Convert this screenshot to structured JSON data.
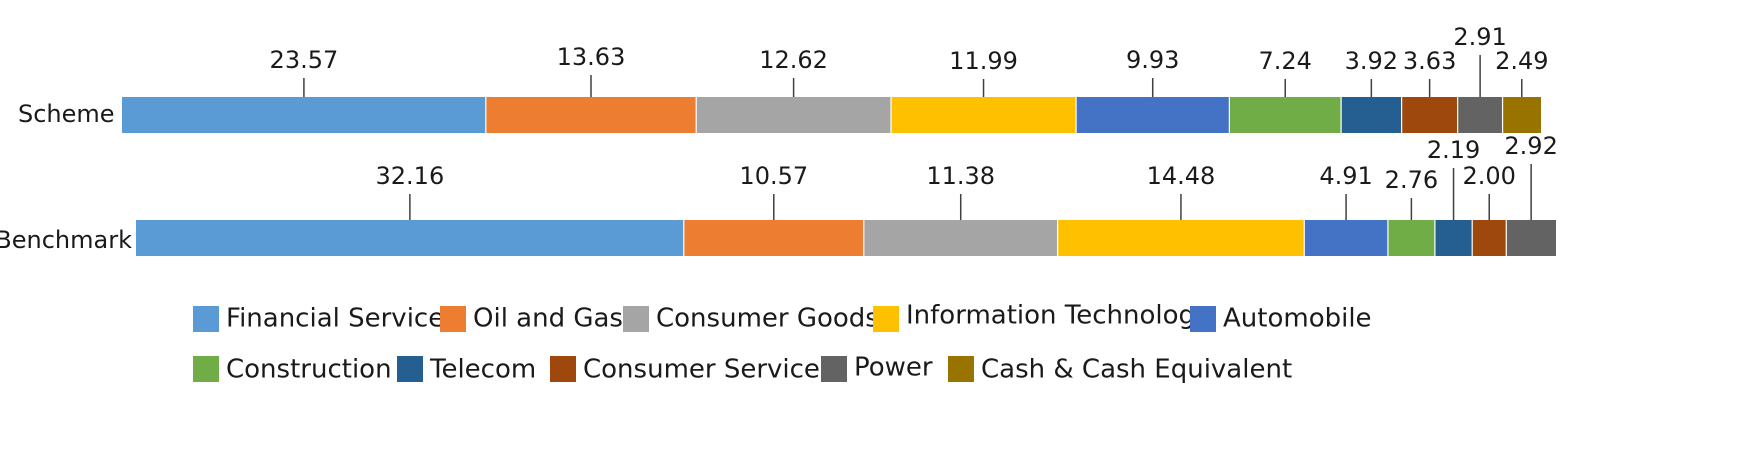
{
  "chart_data": {
    "type": "bar",
    "orientation": "horizontal",
    "stacked": true,
    "categories": [
      "Scheme",
      "Benchmark"
    ],
    "series": [
      {
        "name": "Financial Services",
        "values": [
          23.57,
          32.16
        ]
      },
      {
        "name": "Oil and Gas",
        "values": [
          13.63,
          10.57
        ]
      },
      {
        "name": "Consumer Goods",
        "values": [
          12.62,
          11.38
        ]
      },
      {
        "name": "Information Technology",
        "values": [
          11.99,
          14.48
        ]
      },
      {
        "name": "Automobile",
        "values": [
          9.93,
          4.91
        ]
      },
      {
        "name": "Construction",
        "values": [
          7.24,
          2.76
        ]
      },
      {
        "name": "Telecom",
        "values": [
          3.92,
          2.19
        ]
      },
      {
        "name": "Consumer Services",
        "values": [
          3.63,
          2.0
        ]
      },
      {
        "name": "Power",
        "values": [
          2.91,
          2.92
        ]
      },
      {
        "name": "Cash & Cash Equivalent",
        "values": [
          2.49,
          null
        ]
      }
    ],
    "value_labels": [
      [
        "23.57",
        "13.63",
        "12.62",
        "11.99",
        "9.93",
        "7.24",
        "3.92",
        "3.63",
        "2.91",
        "2.49"
      ],
      [
        "32.16",
        "10.57",
        "11.38",
        "14.48",
        "4.91",
        "2.76",
        "2.19",
        "2.00",
        "2.92",
        ""
      ]
    ],
    "colors": [
      "#5B9BD5",
      "#ED7D31",
      "#A5A5A5",
      "#FFC000",
      "#4472C4",
      "#70AD47",
      "#255E91",
      "#9E480E",
      "#636363",
      "#997300"
    ],
    "legend_position": "bottom",
    "grid": false,
    "xlim": [
      0,
      100
    ]
  }
}
